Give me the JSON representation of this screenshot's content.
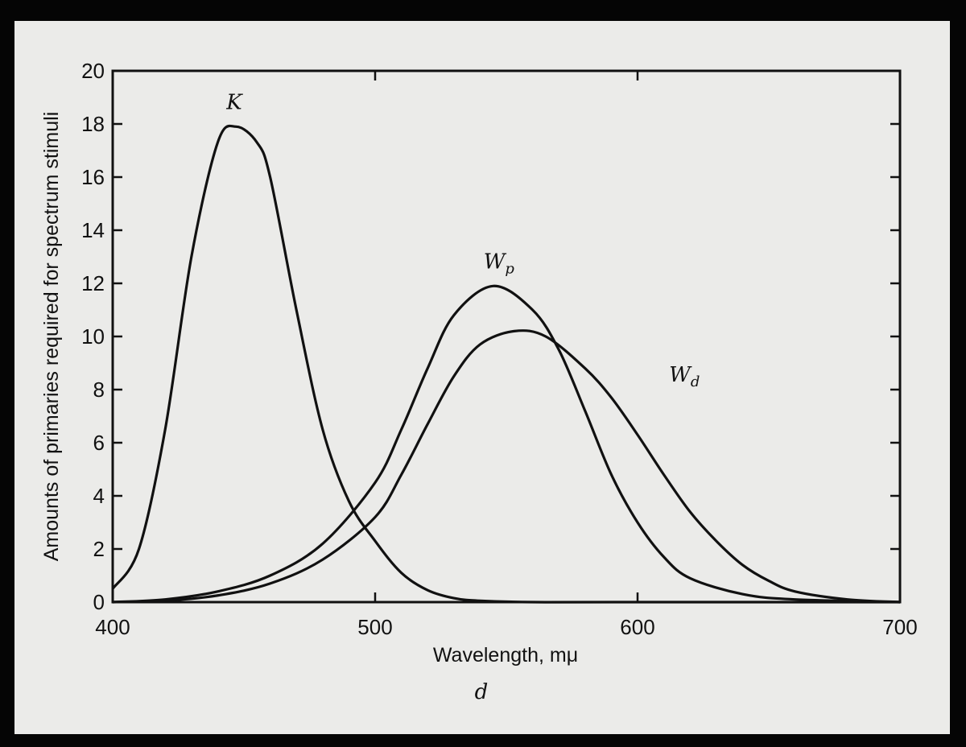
{
  "chart_data": {
    "type": "line",
    "title": "",
    "caption": "d",
    "xlabel": "Wavelength, mμ",
    "ylabel": "Amounts of primaries required for spectrum stimuli",
    "xlim": [
      400,
      700
    ],
    "ylim": [
      0,
      20
    ],
    "xticks": [
      400,
      500,
      600,
      700
    ],
    "yticks": [
      0,
      2,
      4,
      6,
      8,
      10,
      12,
      14,
      16,
      18,
      20
    ],
    "grid": false,
    "series": [
      {
        "name": "K",
        "label_main": "K",
        "label_sub": "",
        "x": [
          400,
          410,
          420,
          430,
          440,
          447,
          455,
          460,
          470,
          480,
          490,
          500,
          510,
          520,
          530,
          540,
          560,
          600,
          700
        ],
        "y": [
          0.5,
          2,
          6.5,
          13,
          17.3,
          17.9,
          17.3,
          16,
          11,
          6.5,
          3.8,
          2.3,
          1.1,
          0.45,
          0.15,
          0.05,
          0,
          0,
          0
        ]
      },
      {
        "name": "Wp",
        "label_main": "W",
        "label_sub": "p",
        "x": [
          400,
          420,
          440,
          460,
          480,
          500,
          510,
          520,
          530,
          545,
          560,
          570,
          580,
          590,
          600,
          610,
          620,
          640,
          660,
          700
        ],
        "y": [
          0,
          0.1,
          0.4,
          1.0,
          2.2,
          4.5,
          6.5,
          8.8,
          10.8,
          11.9,
          11,
          9.5,
          7.2,
          4.8,
          3,
          1.7,
          0.9,
          0.3,
          0.1,
          0
        ]
      },
      {
        "name": "Wd",
        "label_main": "W",
        "label_sub": "d",
        "x": [
          400,
          420,
          440,
          460,
          480,
          500,
          510,
          520,
          530,
          540,
          553,
          565,
          580,
          590,
          600,
          610,
          620,
          630,
          640,
          650,
          660,
          680,
          700
        ],
        "y": [
          0,
          0.05,
          0.25,
          0.7,
          1.6,
          3.2,
          4.8,
          6.7,
          8.5,
          9.7,
          10.2,
          10,
          8.8,
          7.7,
          6.3,
          4.8,
          3.4,
          2.3,
          1.4,
          0.8,
          0.4,
          0.1,
          0
        ]
      }
    ]
  }
}
